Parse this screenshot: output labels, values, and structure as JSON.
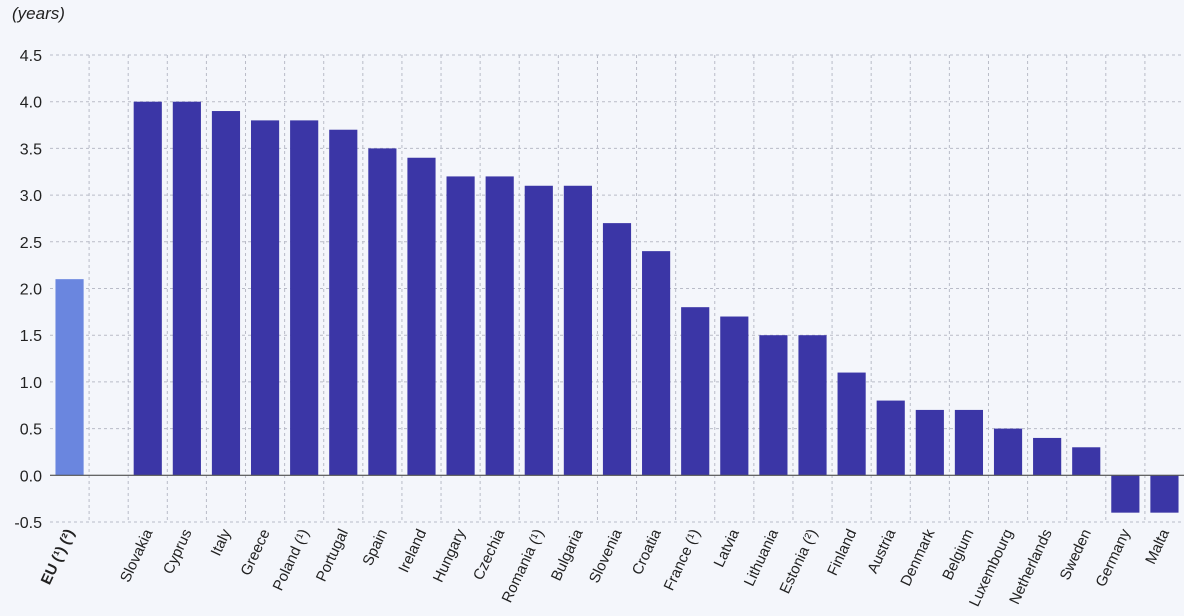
{
  "chart_data": {
    "type": "bar",
    "ylabel": "(years)",
    "ylim": [
      -0.5,
      4.5
    ],
    "yticks": [
      -0.5,
      0.0,
      0.5,
      1.0,
      1.5,
      2.0,
      2.5,
      3.0,
      3.5,
      4.0,
      4.5
    ],
    "grid": true,
    "categories": [
      {
        "label": "EU (¹) (²)",
        "value": 2.1,
        "highlight": true
      },
      {
        "label": "",
        "value": null
      },
      {
        "label": "Slovakia",
        "value": 4.0
      },
      {
        "label": "Cyprus",
        "value": 4.0
      },
      {
        "label": "Italy",
        "value": 3.9
      },
      {
        "label": "Greece",
        "value": 3.8
      },
      {
        "label": "Poland (¹)",
        "value": 3.8
      },
      {
        "label": "Portugal",
        "value": 3.7
      },
      {
        "label": "Spain",
        "value": 3.5
      },
      {
        "label": "Ireland",
        "value": 3.4
      },
      {
        "label": "Hungary",
        "value": 3.2
      },
      {
        "label": "Czechia",
        "value": 3.2
      },
      {
        "label": "Romania (¹)",
        "value": 3.1
      },
      {
        "label": "Bulgaria",
        "value": 3.1
      },
      {
        "label": "Slovenia",
        "value": 2.7
      },
      {
        "label": "Croatia",
        "value": 2.4
      },
      {
        "label": "France (¹)",
        "value": 1.8
      },
      {
        "label": "Latvia",
        "value": 1.7
      },
      {
        "label": "Lithuania",
        "value": 1.5
      },
      {
        "label": "Estonia (²)",
        "value": 1.5
      },
      {
        "label": "Finland",
        "value": 1.1
      },
      {
        "label": "Austria",
        "value": 0.8
      },
      {
        "label": "Denmark",
        "value": 0.7
      },
      {
        "label": "Belgium",
        "value": 0.7
      },
      {
        "label": "Luxembourg",
        "value": 0.5
      },
      {
        "label": "Netherlands",
        "value": 0.4
      },
      {
        "label": "Sweden",
        "value": 0.3
      },
      {
        "label": "Germany",
        "value": -0.4
      },
      {
        "label": "Malta",
        "value": -0.4
      }
    ],
    "colors": {
      "bar": "#3b36a6",
      "highlight": "#6a86df",
      "grid": "#b9bcc8",
      "axis": "#555555",
      "text": "#222222"
    }
  }
}
